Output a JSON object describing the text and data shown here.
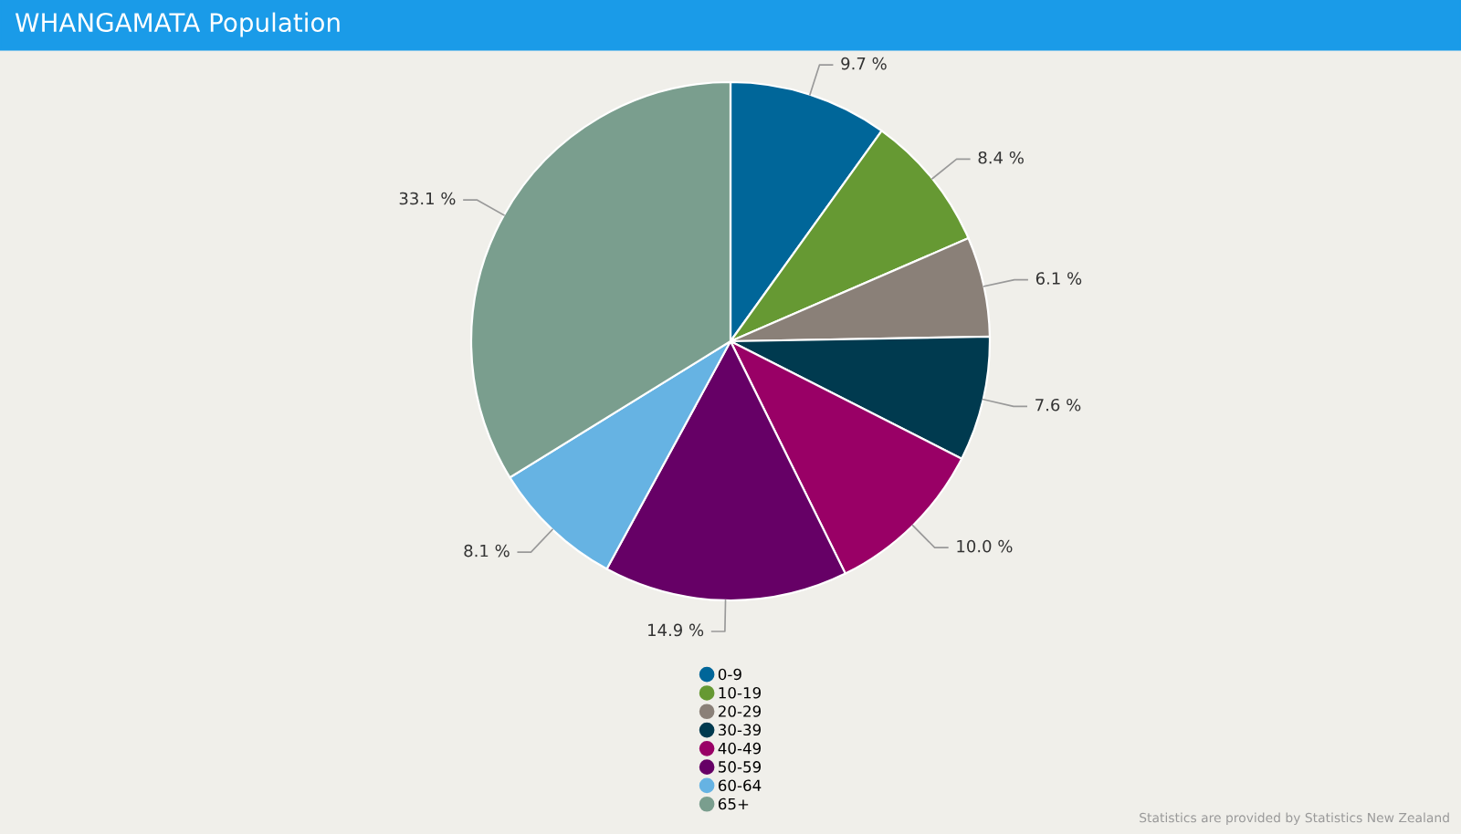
{
  "chart_data": {
    "type": "pie",
    "title": "WHANGAMATA Population",
    "categories": [
      "0-9",
      "10-19",
      "20-29",
      "30-39",
      "40-49",
      "50-59",
      "60-64",
      "65+"
    ],
    "values": [
      9.7,
      8.4,
      6.1,
      7.6,
      10.0,
      14.9,
      8.1,
      33.1
    ],
    "colors": [
      "#006699",
      "#669933",
      "#8a8078",
      "#003a4f",
      "#990066",
      "#660066",
      "#66b3e3",
      "#7a9e8e"
    ],
    "value_labels": [
      "9.7 %",
      "8.4 %",
      "6.1 %",
      "7.6 %",
      "10.0 %",
      "14.9 %",
      "8.1 %",
      "33.1 %"
    ],
    "legend": "bottom",
    "annotations": [
      "Statistics are provided by Statistics New Zealand"
    ]
  }
}
